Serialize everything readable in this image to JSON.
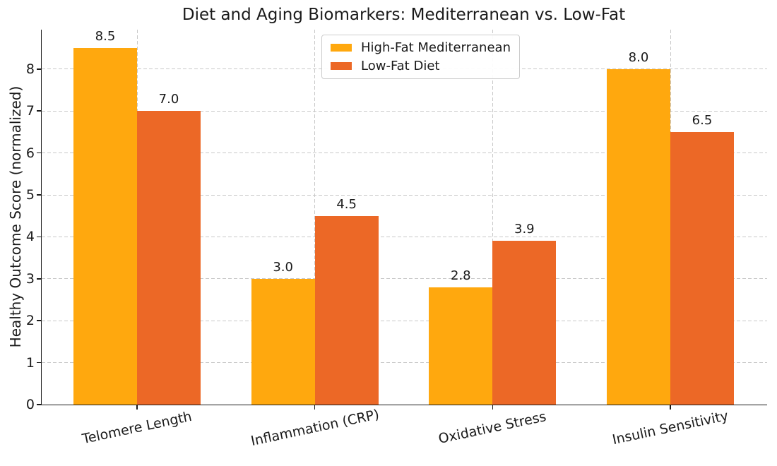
{
  "chart_data": {
    "type": "bar",
    "title": "Diet and Aging Biomarkers: Mediterranean vs. Low-Fat",
    "xlabel": "",
    "ylabel": "Healthy Outcome Score (normalized)",
    "categories": [
      "Telomere Length",
      "Inflammation (CRP)",
      "Oxidative Stress",
      "Insulin Sensitivity"
    ],
    "series": [
      {
        "name": "High-Fat Mediterranean",
        "color": "#FFA80E",
        "values": [
          8.5,
          3.0,
          2.8,
          8.0
        ]
      },
      {
        "name": "Low-Fat Diet",
        "color": "#EC6826",
        "values": [
          7.0,
          4.5,
          3.9,
          6.5
        ]
      }
    ],
    "bar_value_labels": [
      [
        "8.5",
        "3.0",
        "2.8",
        "8.0"
      ],
      [
        "7.0",
        "4.5",
        "3.9",
        "6.5"
      ]
    ],
    "yticks": [
      0,
      1,
      2,
      3,
      4,
      5,
      6,
      7,
      8
    ],
    "ylim": [
      0,
      8.94
    ],
    "grid": true,
    "grid_style": "dashed",
    "grid_color": "#c8c8c8",
    "xtick_rotation_deg": 12,
    "legend_position": "upper center",
    "background": "#ffffff",
    "text_color": "#1a1a1a",
    "spine_color": "#1a1a1a"
  }
}
